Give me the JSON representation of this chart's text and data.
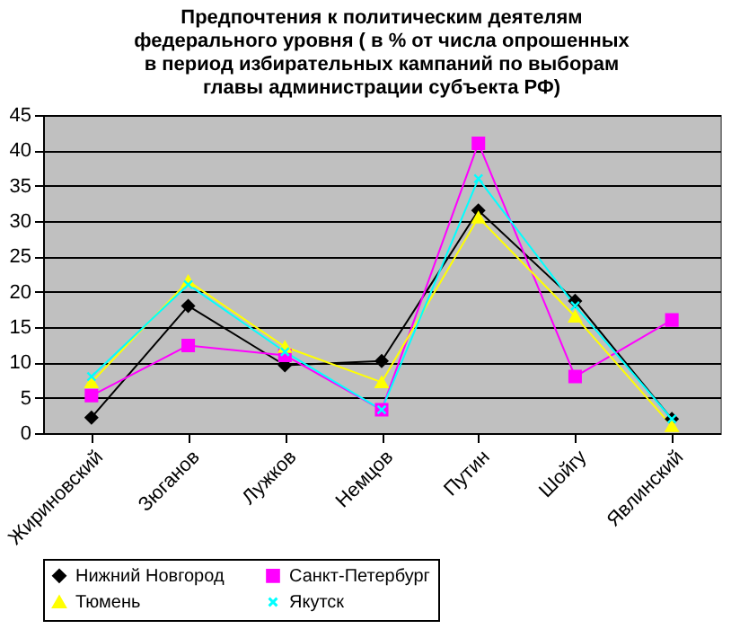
{
  "chart_data": {
    "type": "line",
    "title": "Предпочтения к политическим деятелям\nфедерального уровня ( в % от числа опрошенных\nв период избирательных кампаний по выборам\nглавы администрации субъекта РФ)",
    "categories": [
      "Жириновский",
      "Зюганов",
      "Лужков",
      "Немцов",
      "Путин",
      "Шойгу",
      "Явлинский"
    ],
    "series": [
      {
        "name": "Нижний Новгород",
        "color": "#000000",
        "marker": "diamond",
        "values": [
          2.2,
          18,
          9.6,
          10.2,
          31.5,
          18.7,
          2
        ]
      },
      {
        "name": "Санкт-Петербург",
        "color": "#ff00ff",
        "marker": "square",
        "values": [
          5.3,
          12.4,
          11,
          3.3,
          41,
          8,
          16
        ]
      },
      {
        "name": "Тюмень",
        "color": "#ffff00",
        "marker": "triangle",
        "values": [
          7.2,
          21.5,
          12.2,
          7.2,
          30.5,
          16.5,
          1
        ]
      },
      {
        "name": "Якутск",
        "color": "#00ffff",
        "marker": "cross",
        "values": [
          8,
          21,
          11.5,
          3.3,
          36,
          18,
          2
        ]
      }
    ],
    "ylim": [
      0,
      45
    ],
    "yticks": [
      0,
      5,
      10,
      15,
      20,
      25,
      30,
      35,
      40,
      45
    ],
    "grid": "y",
    "legend": "bottom"
  }
}
